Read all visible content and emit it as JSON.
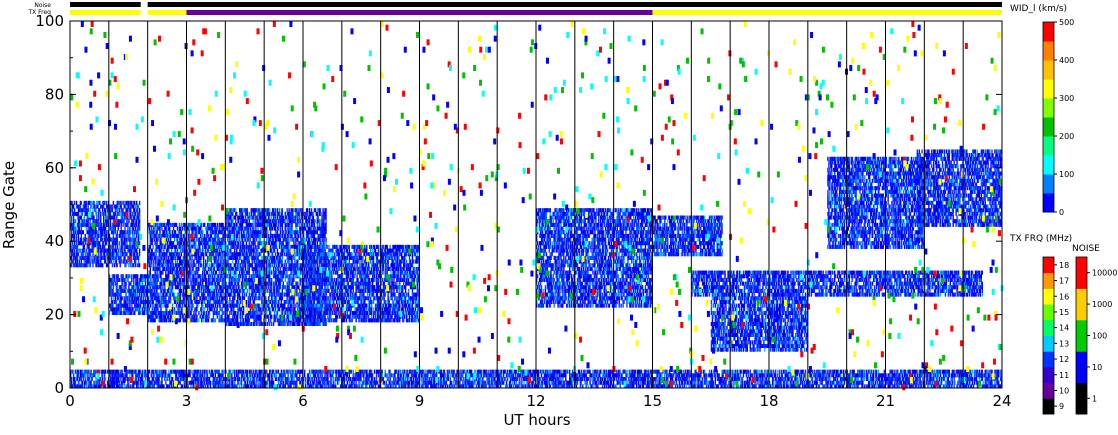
{
  "chart_data": {
    "type": "heatmap",
    "xlabel": "UT hours",
    "ylabel": "Range Gate",
    "x_ticks": [
      "0",
      "3",
      "6",
      "9",
      "12",
      "15",
      "18",
      "21",
      "24"
    ],
    "y_ticks": [
      "0",
      "20",
      "40",
      "60",
      "80",
      "100"
    ],
    "xlim": [
      0,
      24
    ],
    "ylim": [
      0,
      100
    ],
    "scan_boundaries_hours": [
      1,
      2,
      3,
      4,
      5,
      6,
      7,
      8,
      9,
      10,
      11,
      12,
      13,
      14,
      15,
      16,
      17,
      18,
      19,
      20,
      21,
      22,
      23
    ],
    "indicator_labels": {
      "noise": "Noise",
      "tx_freq": "TX Freq"
    },
    "noise_bar": [
      {
        "start": 0.0,
        "end": 1.82,
        "color": "#000000"
      },
      {
        "start": 2.0,
        "end": 24.0,
        "color": "#000000"
      }
    ],
    "tx_freq_bar": [
      {
        "start": 0.0,
        "end": 1.82,
        "color": "#ffff00"
      },
      {
        "start": 2.0,
        "end": 3.0,
        "color": "#ffff00"
      },
      {
        "start": 3.0,
        "end": 15.0,
        "color": "#660099"
      },
      {
        "start": 15.0,
        "end": 24.0,
        "color": "#ffff00"
      }
    ],
    "echo_regions": [
      {
        "t0": 0.0,
        "t1": 1.8,
        "g0": 33,
        "g1": 50
      },
      {
        "t0": 1.0,
        "t1": 2.0,
        "g0": 20,
        "g1": 30
      },
      {
        "t0": 2.0,
        "t1": 4.0,
        "g0": 18,
        "g1": 44
      },
      {
        "t0": 4.0,
        "t1": 6.6,
        "g0": 17,
        "g1": 48
      },
      {
        "t0": 6.0,
        "t1": 9.0,
        "g0": 18,
        "g1": 38
      },
      {
        "t0": 12.0,
        "t1": 15.0,
        "g0": 22,
        "g1": 48
      },
      {
        "t0": 15.0,
        "t1": 16.8,
        "g0": 36,
        "g1": 46
      },
      {
        "t0": 16.5,
        "t1": 19.0,
        "g0": 10,
        "g1": 24
      },
      {
        "t0": 16.0,
        "t1": 23.5,
        "g0": 25,
        "g1": 31
      },
      {
        "t0": 19.5,
        "t1": 22.0,
        "g0": 38,
        "g1": 62
      },
      {
        "t0": 21.8,
        "t1": 24.0,
        "g0": 44,
        "g1": 64
      },
      {
        "t0": 0.0,
        "t1": 24.0,
        "g0": 0,
        "g1": 4
      }
    ],
    "width_colorbar": {
      "title": "WID_l (km/s)",
      "ticks": [
        "0",
        "100",
        "200",
        "300",
        "400",
        "500"
      ],
      "colors": [
        "#0000ff",
        "#0080ff",
        "#00ffff",
        "#00ff80",
        "#00c000",
        "#80ff00",
        "#ffff00",
        "#ffc000",
        "#ff8000",
        "#ff0000"
      ]
    },
    "tx_freq_colorbar": {
      "title": "TX FRQ (MHz)",
      "ticks": [
        "9",
        "10",
        "11",
        "12",
        "13",
        "14",
        "15",
        "16",
        "17",
        "18"
      ],
      "colors": [
        "#000000",
        "#660099",
        "#3300cc",
        "#0033ff",
        "#00ccff",
        "#00ff66",
        "#66ff00",
        "#ffff00",
        "#ff9900",
        "#ff0000"
      ]
    },
    "noise_colorbar": {
      "title": "NOISE",
      "ticks": [
        "1",
        "10",
        "100",
        "1000",
        "10000"
      ],
      "colors": [
        "#000000",
        "#0000ff",
        "#00cc00",
        "#ffcc00",
        "#ff0000"
      ]
    }
  }
}
